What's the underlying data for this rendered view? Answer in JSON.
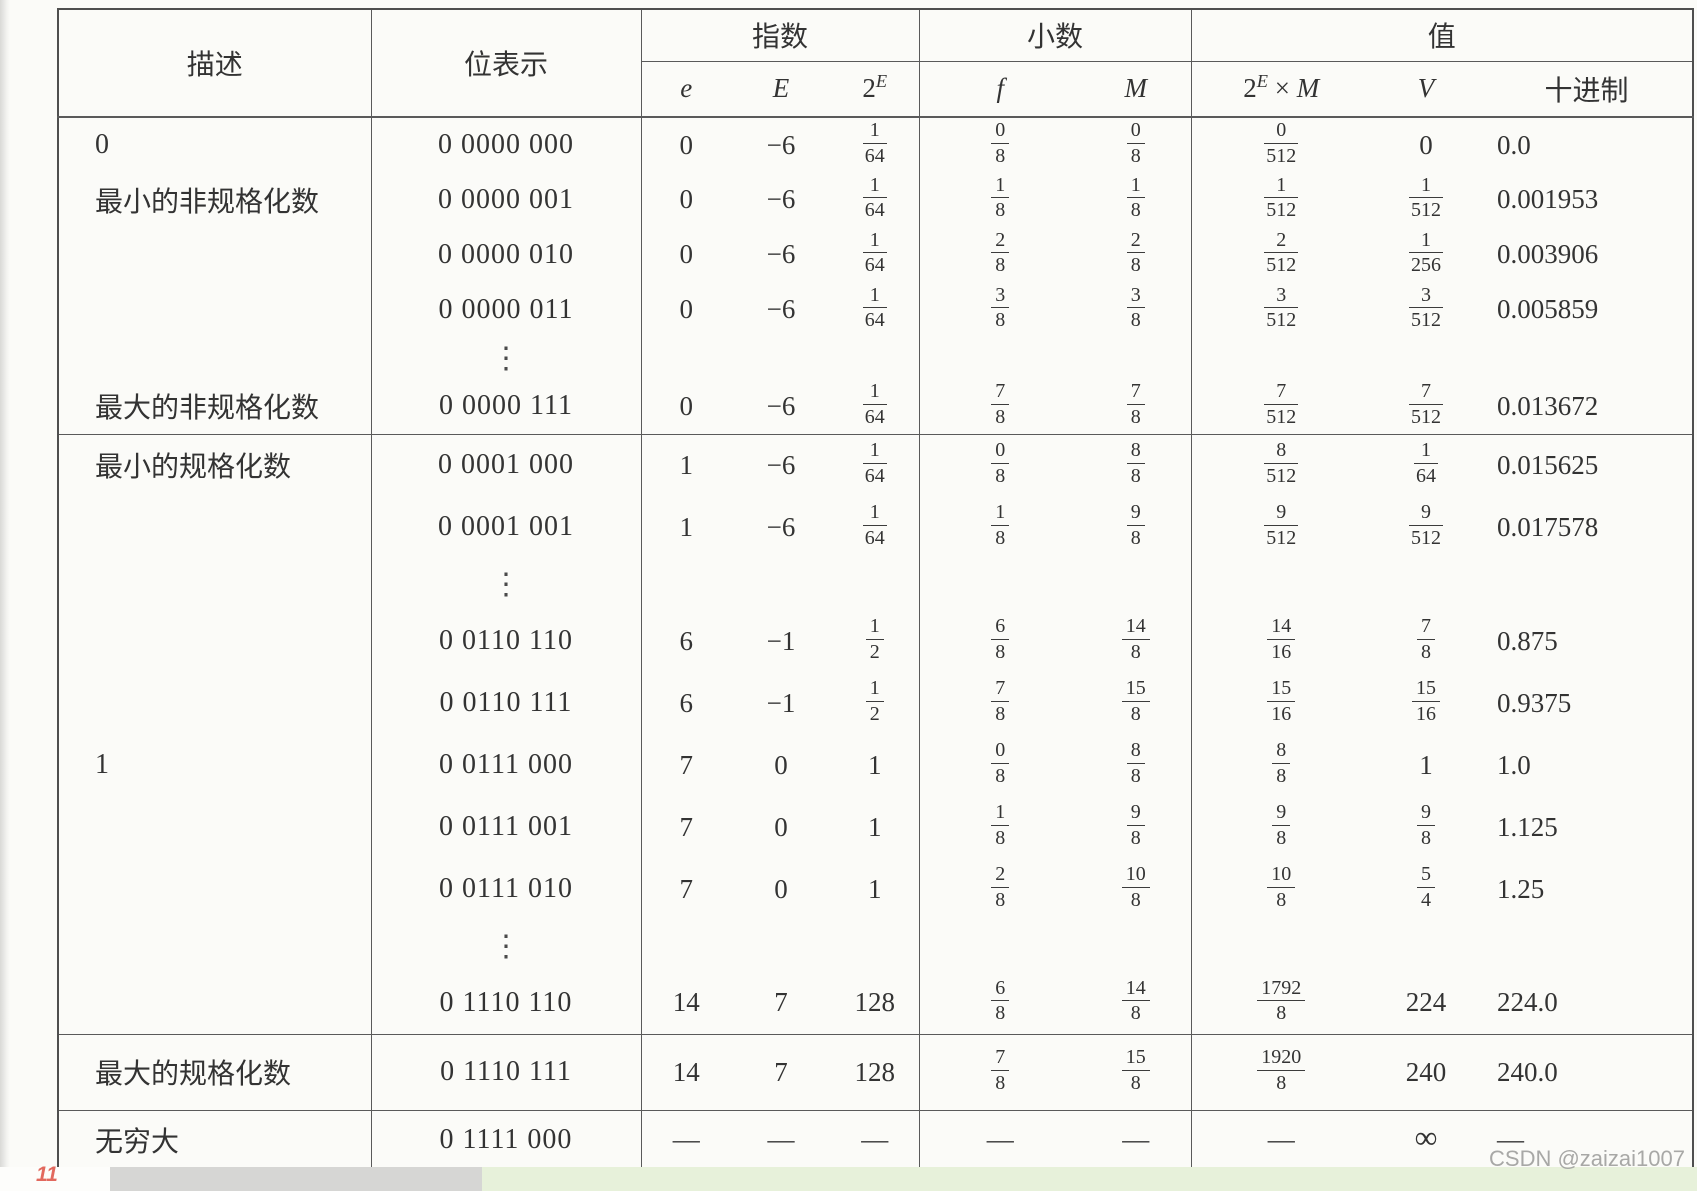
{
  "watermark": "CSDN @zaizai1007",
  "artifacts": {
    "mark_label": "11",
    "mark_color": "#e2695e",
    "strip_white": "#fdfdfb",
    "strip_gray": "#d6d6d4",
    "strip_green": "#e7f1da"
  },
  "table": {
    "header": {
      "desc": "描述",
      "bits": "位表示",
      "groups": [
        {
          "label": "指数",
          "cols": [
            {
              "label": "e",
              "italic": true
            },
            {
              "label": "E",
              "italic": true
            },
            {
              "base": "2",
              "sup": "E"
            }
          ]
        },
        {
          "label": "小数",
          "cols": [
            {
              "label": "f",
              "italic": true
            },
            {
              "label": "M",
              "italic": true
            }
          ]
        },
        {
          "label": "值",
          "cols": [
            {
              "base": "2",
              "sup": "E",
              "mult": "M"
            },
            {
              "label": "V",
              "italic": true
            },
            {
              "label": "十进制",
              "dec": true
            }
          ]
        }
      ]
    },
    "sections": [
      {
        "rows": [
          {
            "desc": "0",
            "bits": "0 0000 000",
            "cells": [
              "0",
              "−6",
              "1/64",
              "0/8",
              "0/8",
              "0/512",
              "0",
              "0.0"
            ]
          },
          {
            "desc": "最小的非规格化数",
            "bits": "0 0000 001",
            "cells": [
              "0",
              "−6",
              "1/64",
              "1/8",
              "1/8",
              "1/512",
              "1/512",
              "0.001953"
            ]
          },
          {
            "desc": "",
            "bits": "0 0000 010",
            "cells": [
              "0",
              "−6",
              "1/64",
              "2/8",
              "2/8",
              "2/512",
              "1/256",
              "0.003906"
            ]
          },
          {
            "desc": "",
            "bits": "0 0000 011",
            "cells": [
              "0",
              "−6",
              "1/64",
              "3/8",
              "3/8",
              "3/512",
              "3/512",
              "0.005859"
            ]
          },
          {
            "type": "ellipsis"
          },
          {
            "desc": "最大的非规格化数",
            "bits": "0 0000 111",
            "cells": [
              "0",
              "−6",
              "1/64",
              "7/8",
              "7/8",
              "7/512",
              "7/512",
              "0.013672"
            ]
          }
        ]
      },
      {
        "rows": [
          {
            "desc": "最小的规格化数",
            "bits": "0 0001 000",
            "cells": [
              "1",
              "−6",
              "1/64",
              "0/8",
              "8/8",
              "8/512",
              "1/64",
              "0.015625"
            ]
          },
          {
            "desc": "",
            "bits": "0 0001 001",
            "cells": [
              "1",
              "−6",
              "1/64",
              "1/8",
              "9/8",
              "9/512",
              "9/512",
              "0.017578"
            ]
          },
          {
            "type": "ellipsis"
          },
          {
            "desc": "",
            "bits": "0 0110 110",
            "cells": [
              "6",
              "−1",
              "1/2",
              "6/8",
              "14/8",
              "14/16",
              "7/8",
              "0.875"
            ]
          },
          {
            "desc": "",
            "bits": "0 0110 111",
            "cells": [
              "6",
              "−1",
              "1/2",
              "7/8",
              "15/8",
              "15/16",
              "15/16",
              "0.9375"
            ]
          },
          {
            "desc": "1",
            "bits": "0 0111 000",
            "cells": [
              "7",
              "0",
              "1",
              "0/8",
              "8/8",
              "8/8",
              "1",
              "1.0"
            ]
          },
          {
            "desc": "",
            "bits": "0 0111 001",
            "cells": [
              "7",
              "0",
              "1",
              "1/8",
              "9/8",
              "9/8",
              "9/8",
              "1.125"
            ]
          },
          {
            "desc": "",
            "bits": "0 0111 010",
            "cells": [
              "7",
              "0",
              "1",
              "2/8",
              "10/8",
              "10/8",
              "5/4",
              "1.25"
            ]
          },
          {
            "type": "ellipsis"
          },
          {
            "desc": "",
            "bits": "0 1110 110",
            "cells": [
              "14",
              "7",
              "128",
              "6/8",
              "14/8",
              "1792/8",
              "224",
              "224.0"
            ]
          }
        ]
      },
      {
        "rows": [
          {
            "desc": "最大的规格化数",
            "bits": "0 1110 111",
            "cells": [
              "14",
              "7",
              "128",
              "7/8",
              "15/8",
              "1920/8",
              "240",
              "240.0"
            ]
          }
        ]
      },
      {
        "rows": [
          {
            "desc": "无穷大",
            "bits": "0 1111 000",
            "cells": [
              "—",
              "—",
              "—",
              "—",
              "—",
              "—",
              "∞",
              "—"
            ]
          }
        ]
      }
    ]
  }
}
